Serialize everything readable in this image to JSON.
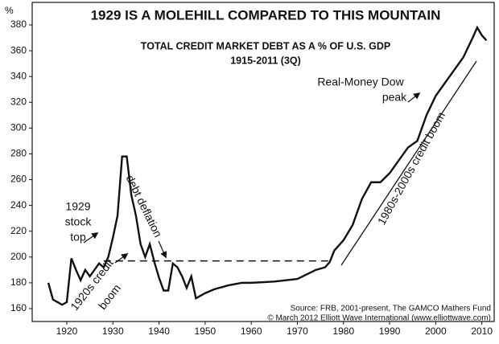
{
  "chart_data": {
    "type": "line",
    "title": "1929 IS A MOLEHILL COMPARED TO THIS MOUNTAIN",
    "subtitle": [
      "TOTAL CREDIT MARKET DEBT AS A % OF U.S. GDP",
      "1915-2011 (3Q)"
    ],
    "y_label": "%",
    "x": [
      1916,
      1917,
      1918,
      1919,
      1920,
      1921,
      1922,
      1923,
      1924,
      1925,
      1926,
      1927,
      1928,
      1929,
      1930,
      1931,
      1932,
      1933,
      1934,
      1935,
      1936,
      1937,
      1938,
      1939,
      1940,
      1941,
      1942,
      1943,
      1944,
      1945,
      1946,
      1947,
      1948,
      1949,
      1950,
      1952,
      1955,
      1958,
      1960,
      1965,
      1970,
      1974,
      1976,
      1977,
      1978,
      1980,
      1982,
      1984,
      1986,
      1988,
      1990,
      1992,
      1994,
      1996,
      1998,
      2000,
      2002,
      2004,
      2006,
      2008,
      2009,
      2010,
      2011
    ],
    "series": [
      {
        "name": "Total credit market debt",
        "color": "#111111",
        "values": [
          180,
          167,
          165,
          163,
          165,
          199,
          190,
          182,
          190,
          185,
          190,
          195,
          192,
          200,
          215,
          232,
          278,
          278,
          248,
          232,
          210,
          200,
          210,
          196,
          184,
          174,
          174,
          195,
          192,
          185,
          176,
          185,
          168,
          170,
          172,
          175,
          178,
          180,
          180,
          181,
          183,
          190,
          192,
          196,
          205,
          213,
          225,
          245,
          258,
          258,
          265,
          275,
          285,
          290,
          310,
          325,
          335,
          345,
          355,
          370,
          378,
          372,
          368
        ]
      }
    ],
    "reference_line": {
      "y": 197,
      "x_start": 1928,
      "x_end": 1977
    },
    "xlim": [
      1912.5,
      2012.5
    ],
    "ylim": [
      150,
      390
    ],
    "xticks": [
      1920,
      1930,
      1940,
      1950,
      1960,
      1970,
      1980,
      1990,
      2000,
      2010
    ],
    "yticks": [
      160,
      180,
      200,
      220,
      240,
      260,
      280,
      300,
      320,
      340,
      360,
      380
    ],
    "grid": false,
    "annotations": [
      "1929",
      "stock",
      "top",
      "debt deflation",
      "1920s credit",
      "boom",
      "1980s-2000s credit boom",
      "Real-Money Dow",
      "peak"
    ],
    "source": [
      "Source: FRB, 2001-present, The GAMCO Mathers Fund",
      "© March 2012 Elliott Wave International (www.elliottwave.com)"
    ]
  }
}
